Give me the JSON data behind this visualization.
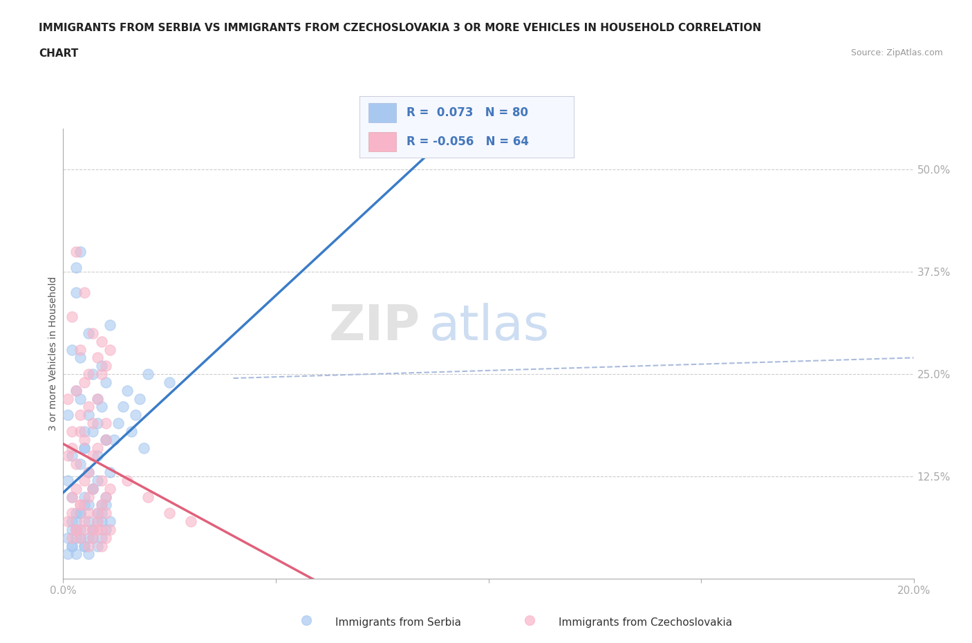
{
  "title_line1": "IMMIGRANTS FROM SERBIA VS IMMIGRANTS FROM CZECHOSLOVAKIA 3 OR MORE VEHICLES IN HOUSEHOLD CORRELATION",
  "title_line2": "CHART",
  "source_text": "Source: ZipAtlas.com",
  "ylabel": "3 or more Vehicles in Household",
  "xlim": [
    0.0,
    0.2
  ],
  "ylim": [
    0.0,
    0.55
  ],
  "xticks": [
    0.0,
    0.05,
    0.1,
    0.15,
    0.2
  ],
  "xticklabels": [
    "0.0%",
    "",
    "",
    "",
    "20.0%"
  ],
  "yticks": [
    0.0,
    0.125,
    0.25,
    0.375,
    0.5
  ],
  "yticklabels": [
    "",
    "12.5%",
    "25.0%",
    "37.5%",
    "50.0%"
  ],
  "serbia_color": "#a8c8f0",
  "czechoslovakia_color": "#f8b4c8",
  "serbia_line_color": "#3a7cc7",
  "czechoslovakia_line_color": "#e0607a",
  "r_serbia": 0.073,
  "n_serbia": 80,
  "r_czechoslovakia": -0.056,
  "n_czechoslovakia": 64,
  "legend_text_color": "#4477bb",
  "background_color": "#ffffff",
  "grid_color": "#cccccc",
  "serbia_scatter_x": [
    0.001,
    0.002,
    0.003,
    0.004,
    0.005,
    0.006,
    0.007,
    0.008,
    0.009,
    0.01,
    0.002,
    0.003,
    0.004,
    0.005,
    0.006,
    0.007,
    0.008,
    0.009,
    0.01,
    0.011,
    0.001,
    0.002,
    0.003,
    0.004,
    0.005,
    0.006,
    0.007,
    0.008,
    0.009,
    0.01,
    0.002,
    0.003,
    0.004,
    0.005,
    0.006,
    0.007,
    0.008,
    0.009,
    0.01,
    0.011,
    0.001,
    0.002,
    0.003,
    0.004,
    0.005,
    0.006,
    0.007,
    0.008,
    0.009,
    0.01,
    0.002,
    0.003,
    0.004,
    0.005,
    0.006,
    0.007,
    0.008,
    0.009,
    0.01,
    0.011,
    0.012,
    0.013,
    0.014,
    0.015,
    0.016,
    0.017,
    0.018,
    0.019,
    0.02,
    0.025,
    0.001,
    0.002,
    0.003,
    0.004,
    0.005,
    0.006,
    0.007,
    0.008,
    0.003,
    0.004
  ],
  "serbia_scatter_y": [
    0.2,
    0.28,
    0.35,
    0.22,
    0.18,
    0.3,
    0.25,
    0.19,
    0.21,
    0.24,
    0.15,
    0.23,
    0.27,
    0.16,
    0.2,
    0.18,
    0.22,
    0.26,
    0.17,
    0.31,
    0.12,
    0.1,
    0.08,
    0.14,
    0.16,
    0.13,
    0.11,
    0.15,
    0.09,
    0.17,
    0.06,
    0.07,
    0.08,
    0.1,
    0.09,
    0.11,
    0.12,
    0.08,
    0.1,
    0.13,
    0.05,
    0.07,
    0.06,
    0.08,
    0.09,
    0.07,
    0.06,
    0.08,
    0.07,
    0.09,
    0.04,
    0.05,
    0.06,
    0.04,
    0.05,
    0.06,
    0.07,
    0.05,
    0.06,
    0.07,
    0.17,
    0.19,
    0.21,
    0.23,
    0.18,
    0.2,
    0.22,
    0.16,
    0.25,
    0.24,
    0.03,
    0.04,
    0.03,
    0.05,
    0.04,
    0.03,
    0.05,
    0.04,
    0.38,
    0.4
  ],
  "czechoslovakia_scatter_x": [
    0.001,
    0.002,
    0.003,
    0.004,
    0.005,
    0.006,
    0.007,
    0.008,
    0.009,
    0.01,
    0.002,
    0.003,
    0.004,
    0.005,
    0.006,
    0.007,
    0.008,
    0.009,
    0.01,
    0.011,
    0.001,
    0.002,
    0.003,
    0.004,
    0.005,
    0.006,
    0.007,
    0.008,
    0.009,
    0.01,
    0.002,
    0.003,
    0.004,
    0.005,
    0.006,
    0.007,
    0.008,
    0.009,
    0.01,
    0.011,
    0.001,
    0.002,
    0.003,
    0.004,
    0.005,
    0.006,
    0.007,
    0.008,
    0.009,
    0.01,
    0.002,
    0.003,
    0.004,
    0.005,
    0.006,
    0.007,
    0.008,
    0.009,
    0.01,
    0.011,
    0.015,
    0.02,
    0.025,
    0.03
  ],
  "czechoslovakia_scatter_y": [
    0.22,
    0.32,
    0.4,
    0.28,
    0.35,
    0.25,
    0.3,
    0.27,
    0.29,
    0.26,
    0.18,
    0.23,
    0.2,
    0.24,
    0.21,
    0.19,
    0.22,
    0.25,
    0.17,
    0.28,
    0.15,
    0.16,
    0.14,
    0.18,
    0.17,
    0.13,
    0.15,
    0.16,
    0.12,
    0.19,
    0.1,
    0.11,
    0.09,
    0.12,
    0.1,
    0.11,
    0.08,
    0.09,
    0.1,
    0.11,
    0.07,
    0.08,
    0.06,
    0.09,
    0.07,
    0.08,
    0.06,
    0.07,
    0.06,
    0.08,
    0.05,
    0.06,
    0.05,
    0.06,
    0.04,
    0.05,
    0.06,
    0.04,
    0.05,
    0.06,
    0.12,
    0.1,
    0.08,
    0.07
  ],
  "watermark_zip": "ZIP",
  "watermark_atlas": "atlas",
  "dashed_line_color": "#aabbdd"
}
